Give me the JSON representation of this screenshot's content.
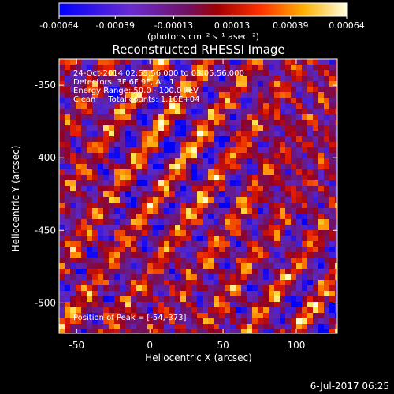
{
  "chart_data": {
    "type": "heatmap",
    "title": "Reconstructed RHESSI Image",
    "xlabel": "Heliocentric X (arcsec)",
    "ylabel": "Heliocentric Y (arcsec)",
    "xlim": [
      -62,
      128
    ],
    "ylim": [
      -521,
      -332
    ],
    "x_ticks": [
      -50,
      0,
      50,
      100
    ],
    "x_tick_labels": [
      "-50",
      "0",
      "50",
      "100"
    ],
    "y_ticks": [
      -350,
      -400,
      -450,
      -500
    ],
    "y_tick_labels": [
      "-350",
      "-400",
      "-450",
      "-500"
    ],
    "colorbar": {
      "range": [
        -0.00064,
        0.00064
      ],
      "ticks": [
        -0.00064,
        -0.00039,
        -0.00013,
        0.00013,
        0.00039,
        0.00064
      ],
      "tick_labels": [
        "-0.00064",
        "-0.00039",
        "-0.00013",
        "0.00013",
        "0.00039",
        "0.00064"
      ],
      "unit_label": "(photons cm⁻² s⁻¹ asec⁻²)"
    },
    "annotations": [
      "24-Oct-2014 02:55:56.000 to 03:05:56.000",
      "Detectors: 3F 6F 9F, Att 1",
      "Energy Range: 50.0 - 100.0 keV",
      "Clean     Total counts: 1.10E+04",
      "Position of Peak = [-54,-373]"
    ],
    "peak_position": [
      -54,
      -373
    ],
    "pattern": "diagonal striped fringes running from upper-left to lower-right",
    "grid": false
  },
  "footer": {
    "timestamp": "6-Jul-2017 06:25"
  }
}
